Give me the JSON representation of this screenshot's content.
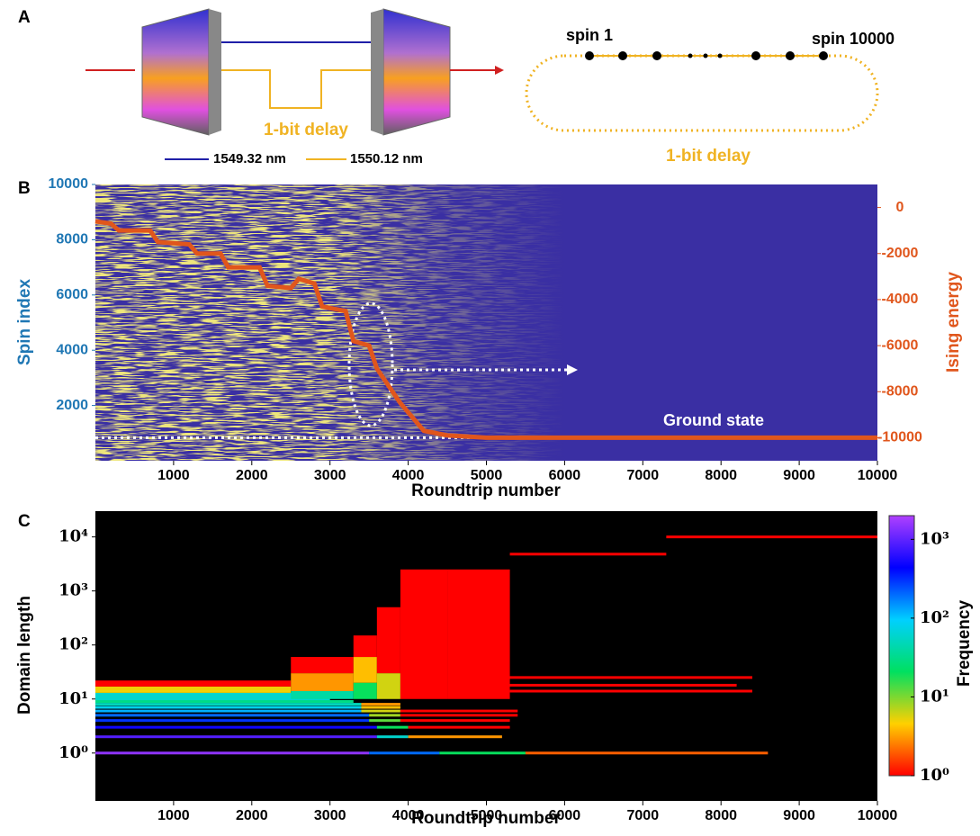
{
  "panel_labels": [
    "A",
    "B",
    "C"
  ],
  "diagram": {
    "delay_left": "1-bit delay",
    "wavelengths": [
      {
        "label": "1549.32 nm",
        "color": "#1f1fa8"
      },
      {
        "label": "1550.12 nm",
        "color": "#f0b323"
      }
    ],
    "spin_first": "spin 1",
    "spin_last": "spin 10000",
    "delay_right": "1-bit delay"
  },
  "chart_data": [
    {
      "type": "line",
      "xlabel": "Roundtrip number",
      "ylabel": "Spin index",
      "y2label": "Ising energy",
      "xlim": [
        0,
        10000
      ],
      "xticks": [
        1000,
        2000,
        3000,
        4000,
        5000,
        6000,
        7000,
        8000,
        9000,
        10000
      ],
      "ylim": [
        0,
        10000
      ],
      "yticks": [
        2000,
        4000,
        6000,
        8000,
        10000
      ],
      "y2lim": [
        -11000,
        1000
      ],
      "y2ticks": [
        0,
        -2000,
        -4000,
        -6000,
        -8000,
        -10000
      ],
      "x": [
        0,
        200,
        300,
        700,
        800,
        1200,
        1300,
        1600,
        1700,
        2100,
        2200,
        2500,
        2600,
        2800,
        2900,
        3200,
        3300,
        3500,
        3600,
        3800,
        3900,
        4200,
        4500,
        5000,
        10000
      ],
      "series": [
        {
          "color": "#e0561c",
          "axis": "y2",
          "values": [
            -600,
            -700,
            -1000,
            -1000,
            -1500,
            -1600,
            -2000,
            -2000,
            -2600,
            -2600,
            -3400,
            -3500,
            -3100,
            -3300,
            -4300,
            -4500,
            -5800,
            -6000,
            -7000,
            -8000,
            -8500,
            -9700,
            -9900,
            -10000,
            -10000
          ]
        }
      ],
      "ground_state": {
        "label": "Ground state",
        "value": -10000
      }
    },
    {
      "type": "heatmap",
      "xlabel": "Roundtrip number",
      "ylabel": "Domain length",
      "log_y": true,
      "xlim": [
        0,
        10000
      ],
      "xticks": [
        1000,
        2000,
        3000,
        4000,
        5000,
        6000,
        7000,
        8000,
        9000,
        10000
      ],
      "ylim": [
        0.13,
        30000
      ],
      "yticks": [
        {
          "value": 1,
          "label": "10⁰"
        },
        {
          "value": 10,
          "label": "10¹"
        },
        {
          "value": 100,
          "label": "10²"
        },
        {
          "value": 1000,
          "label": "10³"
        },
        {
          "value": 10000,
          "label": "10⁴"
        }
      ],
      "colorbar": {
        "label": "Frequency",
        "lim": [
          1,
          2000
        ],
        "colors": [
          "#ff0000",
          "#ffd000",
          "#00e060",
          "#00d0ff",
          "#0000ff",
          "#b040ff"
        ],
        "ticks": [
          {
            "value": 1,
            "label": "10⁰"
          },
          {
            "value": 10,
            "label": "10¹"
          },
          {
            "value": 100,
            "label": "10²"
          },
          {
            "value": 1000,
            "label": "10³"
          }
        ]
      },
      "cells": {
        "x0": [
          0,
          3500,
          4400,
          5500,
          0,
          3600,
          4000,
          0,
          3600,
          4000,
          0,
          3500,
          3900,
          0,
          3500,
          3900,
          0,
          3400,
          3900,
          0,
          3400,
          0,
          3400,
          0,
          0,
          0,
          0,
          2500,
          2500,
          2500,
          3300,
          3300,
          3300,
          3600,
          3600,
          3900,
          4500,
          5300,
          7300,
          4800,
          5000,
          5300
        ],
        "x1": [
          3500,
          4400,
          5500,
          8600,
          3600,
          4000,
          5200,
          3600,
          4000,
          5300,
          3500,
          3900,
          5300,
          3500,
          3900,
          5400,
          3400,
          3900,
          5400,
          3400,
          3900,
          3400,
          3900,
          3300,
          3000,
          2500,
          2500,
          3300,
          3300,
          3300,
          3600,
          3600,
          3600,
          3900,
          3900,
          4500,
          5300,
          7300,
          10000,
          8400,
          8200,
          8400
        ],
        "y_low": [
          1,
          1,
          1,
          1,
          2,
          2,
          2,
          3,
          3,
          3,
          4,
          4,
          4,
          5,
          5,
          5,
          6,
          6,
          6,
          7,
          7,
          8,
          8,
          9,
          9.5,
          13,
          17,
          10,
          14,
          30,
          10,
          20,
          60,
          10,
          30,
          10,
          10,
          4800,
          10000,
          25,
          18,
          14
        ],
        "y_high": [
          1,
          1,
          1,
          1,
          2,
          2,
          2,
          3,
          3,
          3,
          4,
          4,
          4,
          5,
          5,
          5,
          6,
          6,
          6,
          7,
          7,
          8,
          8,
          9,
          13,
          17,
          22,
          14,
          30,
          60,
          20,
          60,
          150,
          30,
          500,
          2500,
          2500,
          4800,
          10000,
          25,
          18,
          14
        ],
        "frequency": [
          1500,
          200,
          20,
          2,
          900,
          60,
          3,
          500,
          20,
          1,
          300,
          12,
          1,
          200,
          8,
          1,
          120,
          6,
          1,
          80,
          4,
          50,
          3,
          30,
          60,
          5,
          1,
          40,
          3,
          1,
          20,
          4,
          1,
          6,
          1,
          1,
          1,
          1,
          1,
          1,
          1,
          1
        ]
      }
    }
  ]
}
